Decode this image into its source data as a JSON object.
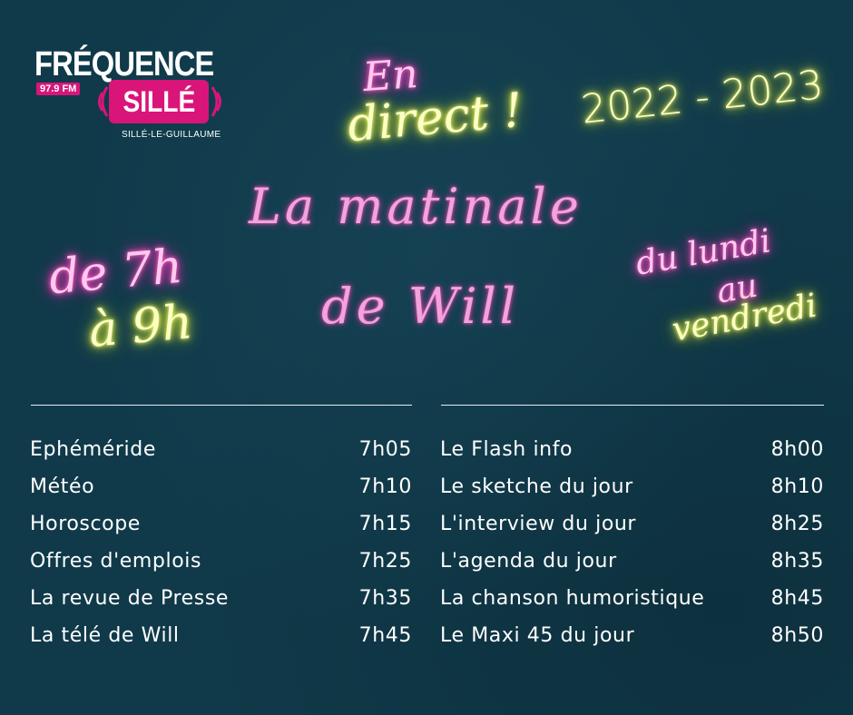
{
  "logo": {
    "brand": "FRÉQUENCE",
    "frequency": "97.9 FM",
    "station": "SILLÉ",
    "city": "SILLÉ-LE-GUILLAUME"
  },
  "headline": {
    "en": "En",
    "direct": "direct !",
    "season": "2022 - 2023",
    "title_line1": "La matinale",
    "title_line2": "de Will",
    "hours_line1": "de 7h",
    "hours_line2": "à 9h",
    "days_line1": "du lundi",
    "days_line2": "au",
    "days_line3": "vendredi"
  },
  "colors": {
    "background": "#103a4a",
    "neon_pink": "#ff62c9",
    "neon_yellow": "#f5ff6a",
    "logo_pink": "#d9157a"
  },
  "schedule": {
    "left": [
      {
        "label": "Ephéméride",
        "time": "7h05"
      },
      {
        "label": "Météo",
        "time": "7h10"
      },
      {
        "label": "Horoscope",
        "time": "7h15"
      },
      {
        "label": "Offres d'emplois",
        "time": "7h25"
      },
      {
        "label": "La revue de Presse",
        "time": "7h35"
      },
      {
        "label": "La télé de Will",
        "time": "7h45"
      }
    ],
    "right": [
      {
        "label": "Le Flash info",
        "time": "8h00"
      },
      {
        "label": "Le sketche du jour",
        "time": "8h10"
      },
      {
        "label": "L'interview du jour",
        "time": "8h25"
      },
      {
        "label": "L'agenda du jour",
        "time": "8h35"
      },
      {
        "label": "La chanson humoristique",
        "time": "8h45"
      },
      {
        "label": "Le Maxi 45 du jour",
        "time": "8h50"
      }
    ]
  }
}
